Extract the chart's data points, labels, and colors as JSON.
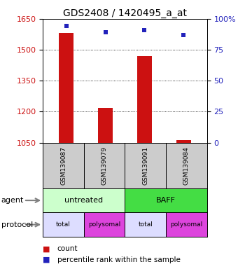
{
  "title": "GDS2408 / 1420495_a_at",
  "samples": [
    "GSM139087",
    "GSM139079",
    "GSM139091",
    "GSM139084"
  ],
  "bar_values": [
    1582,
    1218,
    1468,
    1062
  ],
  "percentile_values": [
    94,
    89,
    91,
    87
  ],
  "ylim_left": [
    1050,
    1650
  ],
  "yticks_left": [
    1050,
    1200,
    1350,
    1500,
    1650
  ],
  "ylim_right": [
    0,
    100
  ],
  "yticks_right": [
    0,
    25,
    50,
    75,
    100
  ],
  "bar_color": "#cc1111",
  "percentile_color": "#2222bb",
  "agent_labels": [
    "untreated",
    "BAFF"
  ],
  "agent_colors": [
    "#ccffcc",
    "#44dd44"
  ],
  "protocol_labels": [
    "total",
    "polysomal",
    "total",
    "polysomal"
  ],
  "protocol_colors": [
    "#ddddff",
    "#dd44dd",
    "#ddddff",
    "#dd44dd"
  ],
  "sample_box_color": "#cccccc",
  "title_fontsize": 10,
  "tick_fontsize": 8,
  "left_color": "#cc1111",
  "right_color": "#2222bb"
}
